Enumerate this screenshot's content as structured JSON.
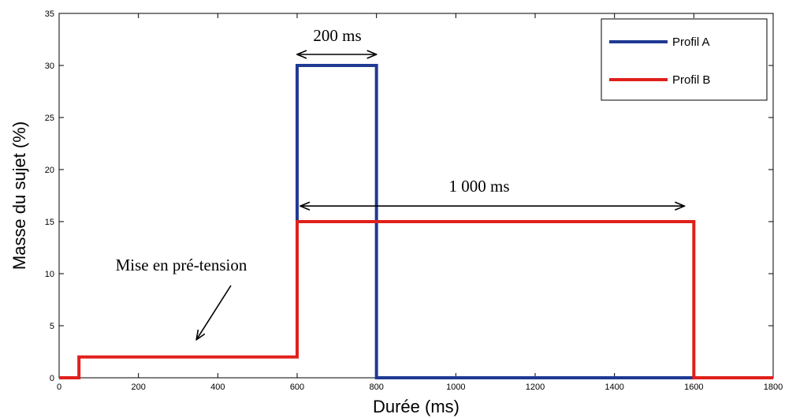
{
  "chart_data": {
    "type": "line",
    "xlabel": "Durée (ms)",
    "ylabel": "Masse du sujet (%)",
    "xlim": [
      0,
      1800
    ],
    "ylim": [
      0,
      35
    ],
    "xticks": [
      0,
      200,
      400,
      600,
      800,
      1000,
      1200,
      1400,
      1600,
      1800
    ],
    "yticks": [
      0,
      5,
      10,
      15,
      20,
      25,
      30,
      35
    ],
    "grid": false,
    "legend_position": "top-right",
    "series": [
      {
        "name": "Profil A",
        "color": "#1f3a93",
        "x": [
          600,
          600,
          800,
          800,
          1800
        ],
        "y": [
          15,
          30,
          30,
          0,
          0
        ]
      },
      {
        "name": "Profil B",
        "color": "#e0201b",
        "x": [
          0,
          50,
          50,
          600,
          600,
          1600,
          1600,
          1800
        ],
        "y": [
          0,
          0,
          2,
          2,
          15,
          15,
          0,
          0
        ]
      }
    ],
    "annotations": [
      {
        "text": "200 ms",
        "type": "double-arrow",
        "x_from": 600,
        "x_to": 800,
        "y": 30
      },
      {
        "text": "1 000 ms",
        "type": "double-arrow",
        "x_from": 600,
        "x_to": 1600,
        "y": 16.5
      },
      {
        "text": "Mise en pré-tension",
        "type": "arrow",
        "points_to_x": 350,
        "points_to_y": 3.5
      }
    ]
  }
}
